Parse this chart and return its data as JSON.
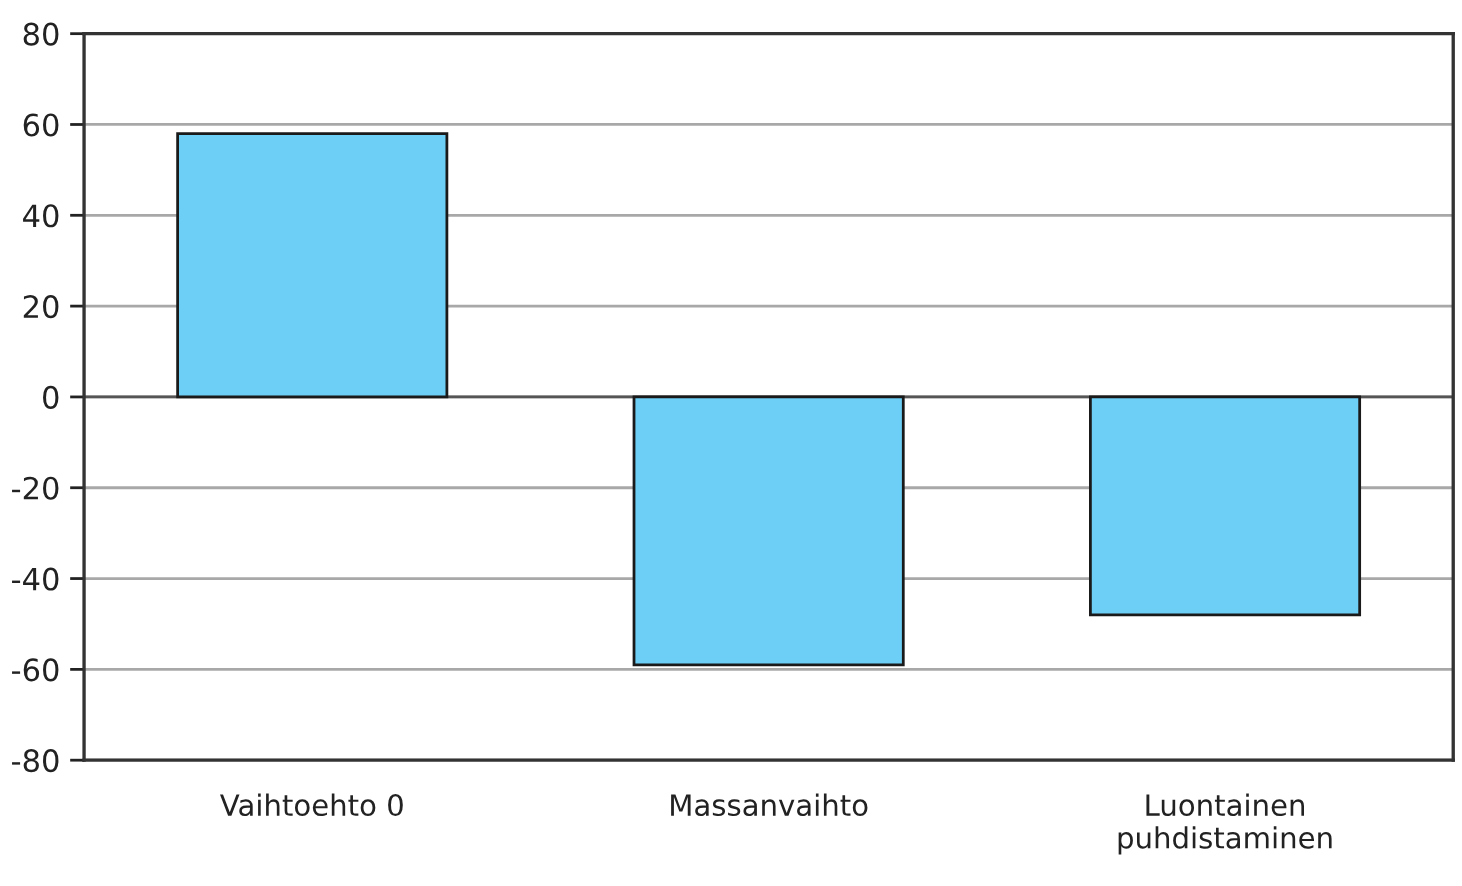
{
  "chart_data": {
    "type": "bar",
    "categories": [
      "Vaihtoehto 0",
      "Massanvaihto",
      "Luontainen\npuhdistaminen"
    ],
    "values": [
      58,
      -59,
      -48
    ],
    "color": "#6dcff6",
    "ylim": [
      -80,
      80
    ],
    "yticks": [
      -80,
      -60,
      -40,
      -20,
      0,
      20,
      40,
      60,
      80
    ],
    "grid": "y"
  }
}
